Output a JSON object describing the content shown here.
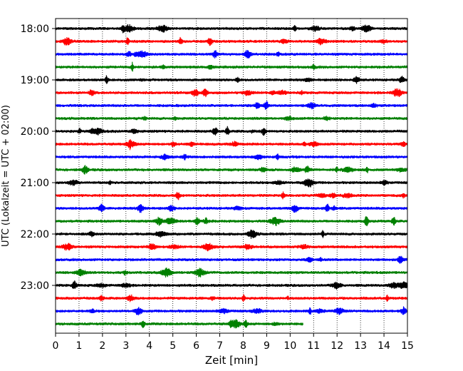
{
  "chart_data": {
    "type": "line",
    "title": "",
    "xlabel": "Zeit  [min]",
    "ylabel": "UTC (Lokalzeit = UTC + 02:00)",
    "xlim": [
      0,
      15
    ],
    "x_ticks": [
      "0",
      "1",
      "2",
      "3",
      "4",
      "5",
      "6",
      "7",
      "8",
      "9",
      "10",
      "11",
      "12",
      "13",
      "14",
      "15"
    ],
    "y_ticks": [
      "18:00",
      "19:00",
      "20:00",
      "21:00",
      "22:00",
      "23:00"
    ],
    "grid": "vertical-dotted",
    "legend": "none",
    "trace_minutes": 15,
    "colors": [
      "#000000",
      "#ff0000",
      "#0000ff",
      "#008000"
    ],
    "series": [
      {
        "start": "18:00",
        "end_min": 15
      },
      {
        "start": "18:15",
        "end_min": 15
      },
      {
        "start": "18:30",
        "end_min": 15
      },
      {
        "start": "18:45",
        "end_min": 15
      },
      {
        "start": "19:00",
        "end_min": 15
      },
      {
        "start": "19:15",
        "end_min": 15
      },
      {
        "start": "19:30",
        "end_min": 15
      },
      {
        "start": "19:45",
        "end_min": 15
      },
      {
        "start": "20:00",
        "end_min": 15
      },
      {
        "start": "20:15",
        "end_min": 15
      },
      {
        "start": "20:30",
        "end_min": 15
      },
      {
        "start": "20:45",
        "end_min": 15
      },
      {
        "start": "21:00",
        "end_min": 15
      },
      {
        "start": "21:15",
        "end_min": 15
      },
      {
        "start": "21:30",
        "end_min": 15
      },
      {
        "start": "21:45",
        "end_min": 15
      },
      {
        "start": "22:00",
        "end_min": 15
      },
      {
        "start": "22:15",
        "end_min": 15
      },
      {
        "start": "22:30",
        "end_min": 15
      },
      {
        "start": "22:45",
        "end_min": 15
      },
      {
        "start": "23:00",
        "end_min": 15
      },
      {
        "start": "23:15",
        "end_min": 15
      },
      {
        "start": "23:30",
        "end_min": 15
      },
      {
        "start": "23:45",
        "end_min": 10.55
      }
    ]
  }
}
